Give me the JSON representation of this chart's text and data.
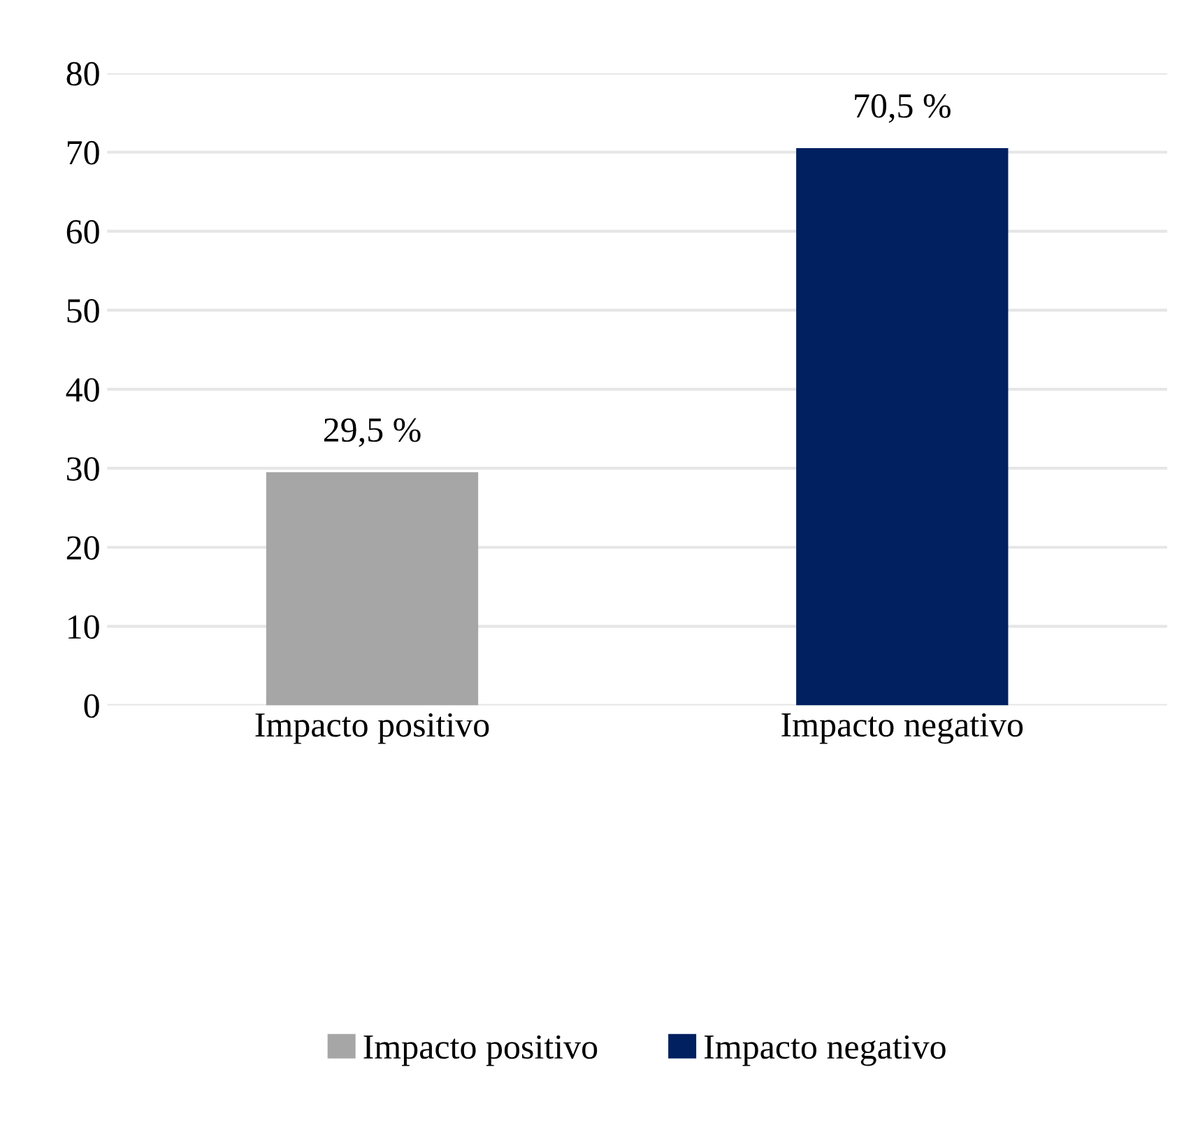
{
  "chart_data": {
    "type": "bar",
    "categories": [
      "Impacto positivo",
      "Impacto negativo"
    ],
    "series": [
      {
        "name": "Impacto positivo",
        "color": "#a6a6a6",
        "values": [
          29.5,
          null
        ],
        "value_labels": [
          "29,5 %",
          null
        ]
      },
      {
        "name": "Impacto negativo",
        "color": "#002060",
        "values": [
          null,
          70.5
        ],
        "value_labels": [
          null,
          "70,5 %"
        ]
      }
    ],
    "ylim": [
      0,
      80
    ],
    "yticks": [
      0,
      10,
      20,
      30,
      40,
      50,
      60,
      70,
      80
    ],
    "grid": "y",
    "legend": "bottom"
  }
}
